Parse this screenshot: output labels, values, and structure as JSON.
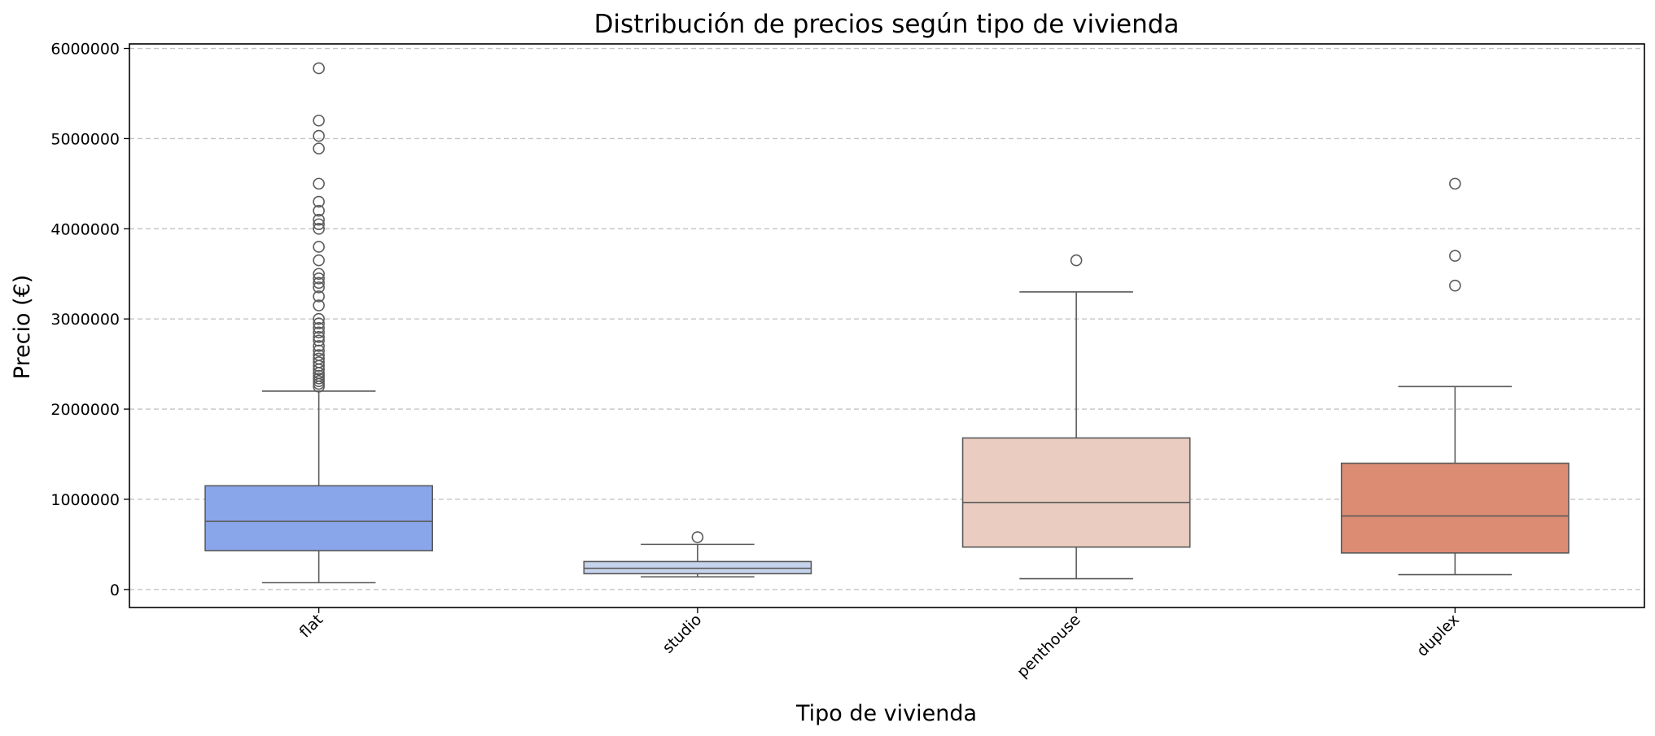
{
  "chart_data": {
    "type": "box",
    "title": "Distribución de precios según tipo de vivienda",
    "xlabel": "Tipo de vivienda",
    "ylabel": "Precio (€)",
    "ylim": [
      -200000,
      6050000
    ],
    "yticks": [
      0,
      1000000,
      2000000,
      3000000,
      4000000,
      5000000,
      6000000
    ],
    "ytick_labels": [
      "0",
      "1000000",
      "2000000",
      "3000000",
      "4000000",
      "5000000",
      "6000000"
    ],
    "grid": "y-dashed",
    "categories": [
      "flat",
      "studio",
      "penthouse",
      "duplex"
    ],
    "boxes": [
      {
        "category": "flat",
        "color": "#8aa6ea",
        "whisker_low": 75000,
        "q1": 430000,
        "median": 755000,
        "q3": 1150000,
        "whisker_high": 2200000,
        "outliers": [
          2250000,
          2280000,
          2310000,
          2340000,
          2370000,
          2400000,
          2440000,
          2480000,
          2520000,
          2560000,
          2600000,
          2650000,
          2700000,
          2760000,
          2800000,
          2850000,
          2900000,
          2950000,
          3000000,
          3150000,
          3250000,
          3350000,
          3400000,
          3450000,
          3500000,
          3650000,
          3800000,
          4000000,
          4050000,
          4100000,
          4200000,
          4300000,
          4500000,
          4890000,
          5030000,
          5200000,
          5780000
        ]
      },
      {
        "category": "studio",
        "color": "#c6d3ec",
        "whisker_low": 140000,
        "q1": 175000,
        "median": 235000,
        "q3": 310000,
        "whisker_high": 500000,
        "outliers": [
          580000
        ]
      },
      {
        "category": "penthouse",
        "color": "#eacdc0",
        "whisker_low": 120000,
        "q1": 470000,
        "median": 965000,
        "q3": 1680000,
        "whisker_high": 3300000,
        "outliers": [
          3650000
        ]
      },
      {
        "category": "duplex",
        "color": "#dd8c74",
        "whisker_low": 165000,
        "q1": 405000,
        "median": 815000,
        "q3": 1400000,
        "whisker_high": 2250000,
        "outliers": [
          3370000,
          3700000,
          4500000
        ]
      }
    ]
  }
}
